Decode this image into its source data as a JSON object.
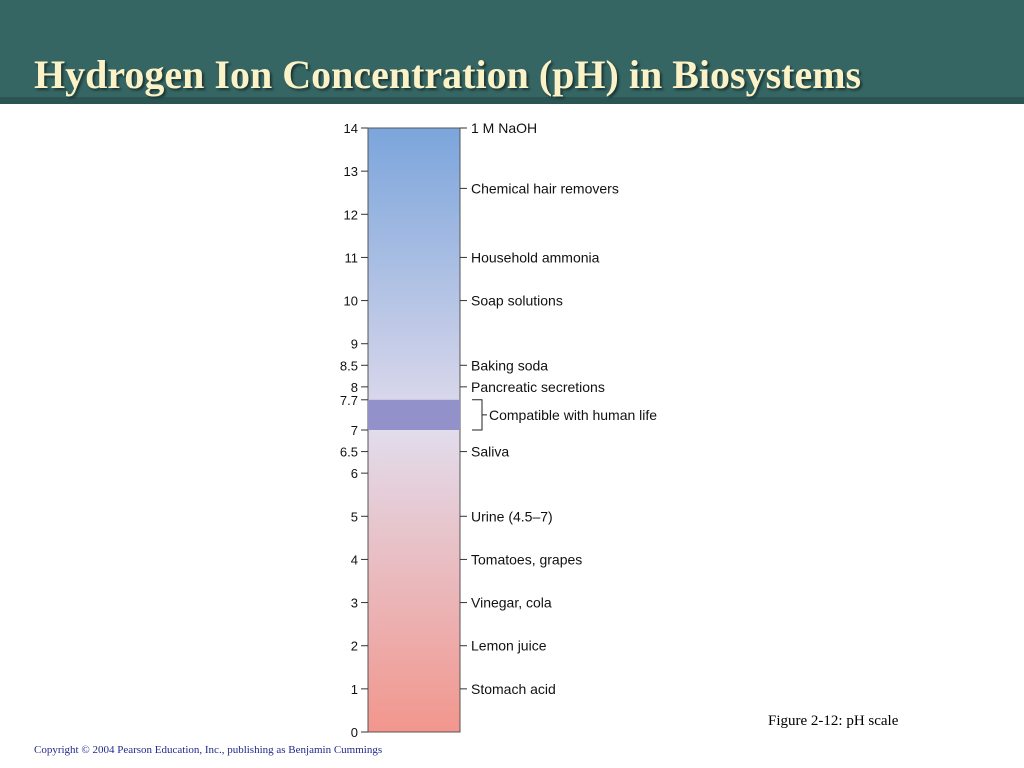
{
  "slide": {
    "title": "Hydrogen Ion Concentration (pH) in Biosystems",
    "figure_caption": "Figure 2-12: pH scale",
    "copyright": "Copyright © 2004 Pearson Education, Inc., publishing as Benjamin Cummings"
  },
  "colors": {
    "title_bar": "#356664",
    "title_text": "#fbf2c8",
    "basic_end": "#7ba5dc",
    "neutral_mid": "#e2dcec",
    "acidic_end": "#f2968d",
    "life_band": "#9391c9"
  },
  "ph_scale": {
    "min": 0,
    "max": 14,
    "ticks": [
      {
        "value": 14,
        "label": "14"
      },
      {
        "value": 13,
        "label": "13"
      },
      {
        "value": 12,
        "label": "12"
      },
      {
        "value": 11,
        "label": "11"
      },
      {
        "value": 10,
        "label": "10"
      },
      {
        "value": 9,
        "label": "9"
      },
      {
        "value": 8.5,
        "label": "8.5"
      },
      {
        "value": 8,
        "label": "8"
      },
      {
        "value": 7.7,
        "label": "7.7"
      },
      {
        "value": 7,
        "label": "7"
      },
      {
        "value": 6.5,
        "label": "6.5"
      },
      {
        "value": 6,
        "label": "6"
      },
      {
        "value": 5,
        "label": "5"
      },
      {
        "value": 4,
        "label": "4"
      },
      {
        "value": 3,
        "label": "3"
      },
      {
        "value": 2,
        "label": "2"
      },
      {
        "value": 1,
        "label": "1"
      },
      {
        "value": 0,
        "label": "0"
      }
    ],
    "substances": [
      {
        "value": 14,
        "label": "1 M NaOH"
      },
      {
        "value": 12.6,
        "label": "Chemical hair removers"
      },
      {
        "value": 11,
        "label": "Household ammonia"
      },
      {
        "value": 10,
        "label": "Soap solutions"
      },
      {
        "value": 8.5,
        "label": "Baking soda"
      },
      {
        "value": 8,
        "label": "Pancreatic secretions"
      },
      {
        "value": 6.5,
        "label": "Saliva"
      },
      {
        "value": 5,
        "label": "Urine (4.5–7)"
      },
      {
        "value": 4,
        "label": "Tomatoes, grapes"
      },
      {
        "value": 3,
        "label": "Vinegar, cola"
      },
      {
        "value": 2,
        "label": "Lemon juice"
      },
      {
        "value": 1,
        "label": "Stomach acid"
      }
    ],
    "life_range": {
      "low": 7,
      "high": 7.7,
      "label": "Compatible with human life"
    }
  }
}
